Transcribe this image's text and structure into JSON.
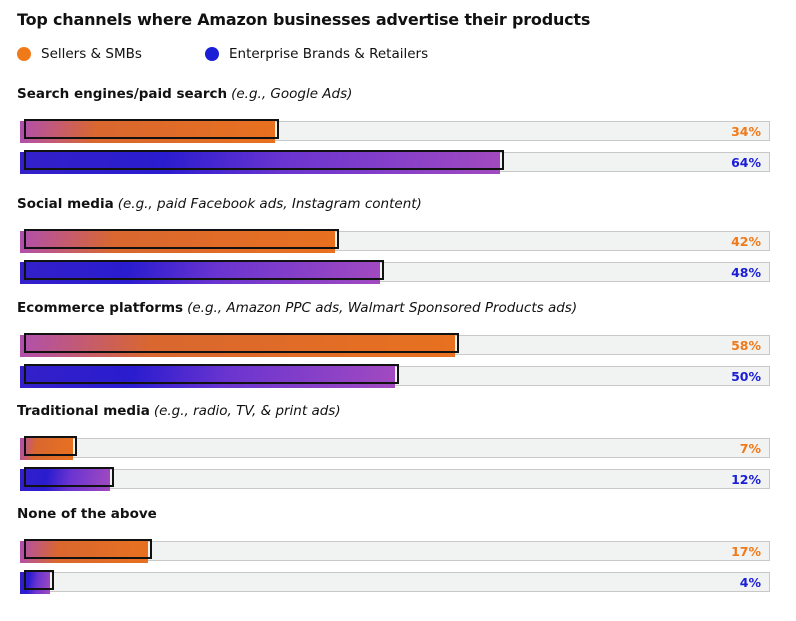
{
  "chart_data": {
    "type": "bar",
    "orientation": "horizontal",
    "title": "Top channels where Amazon businesses advertise their products",
    "legend": [
      {
        "name": "Sellers & SMBs",
        "color": "#f07a1a"
      },
      {
        "name": "Enterprise Brands & Retailers",
        "color": "#1a1fd6"
      }
    ],
    "xlim": [
      0,
      100
    ],
    "categories": [
      {
        "name": "Search engines/paid search",
        "note": "(e.g., Google Ads)"
      },
      {
        "name": "Social media",
        "note": "(e.g., paid Facebook ads, Instagram content)"
      },
      {
        "name": "Ecommerce platforms",
        "note": "(e.g., Amazon PPC ads, Walmart Sponsored Products ads)"
      },
      {
        "name": "Traditional media",
        "note": "(e.g., radio, TV, & print ads)"
      },
      {
        "name": "None of the above",
        "note": ""
      }
    ],
    "series": [
      {
        "name": "Sellers & SMBs",
        "values": [
          34,
          42,
          58,
          7,
          17
        ],
        "labels": [
          "34%",
          "42%",
          "58%",
          "7%",
          "17%"
        ]
      },
      {
        "name": "Enterprise Brands & Retailers",
        "values": [
          64,
          48,
          50,
          12,
          4
        ],
        "labels": [
          "64%",
          "48%",
          "50%",
          "12%",
          "4%"
        ]
      }
    ]
  }
}
